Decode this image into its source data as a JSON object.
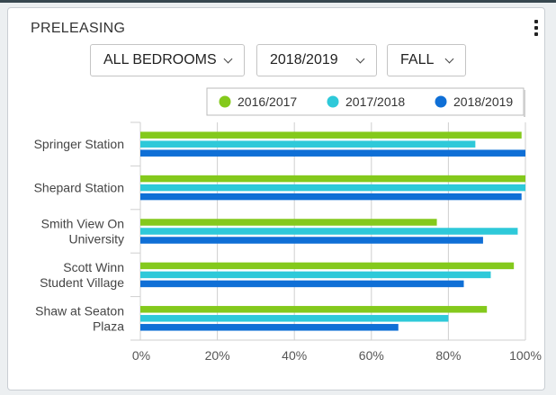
{
  "card": {
    "title": "PRELEASING"
  },
  "filters": {
    "bedrooms": "ALL BEDROOMS",
    "year": "2018/2019",
    "term": "FALL"
  },
  "chart_data": {
    "type": "bar",
    "orientation": "horizontal",
    "categories": [
      [
        "Springer Station"
      ],
      [
        "Shepard Station"
      ],
      [
        "Smith View On",
        "University"
      ],
      [
        "Scott Winn",
        "Student Village"
      ],
      [
        "Shaw at Seaton",
        "Plaza"
      ]
    ],
    "series": [
      {
        "name": "2016/2017",
        "color": "#84c91c",
        "values": [
          99,
          100,
          77,
          97,
          90
        ]
      },
      {
        "name": "2017/2018",
        "color": "#2ec9d9",
        "values": [
          87,
          100,
          98,
          91,
          80
        ]
      },
      {
        "name": "2018/2019",
        "color": "#0f6fd6",
        "values": [
          100,
          99,
          89,
          84,
          67
        ]
      }
    ],
    "x_ticks": [
      "0%",
      "20%",
      "40%",
      "60%",
      "80%",
      "100%"
    ],
    "xlim": [
      0,
      100
    ],
    "grid": true,
    "legend_position": "top-right"
  }
}
